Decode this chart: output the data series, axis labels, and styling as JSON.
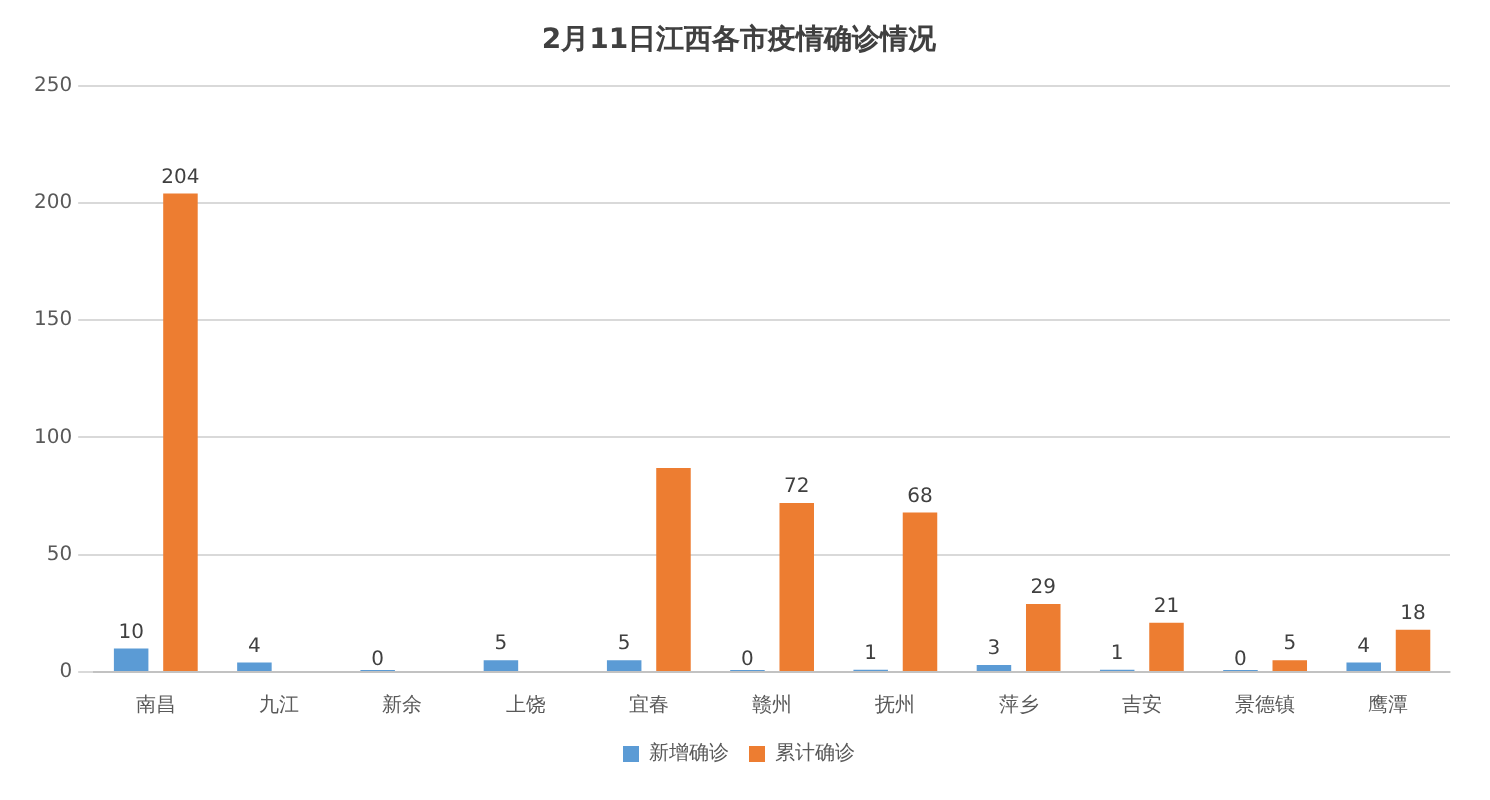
{
  "chart_data": {
    "type": "bar",
    "title": "2月11日江西各市疫情确诊情况",
    "categories": [
      "南昌",
      "九江",
      "新余",
      "上饶",
      "宜春",
      "赣州",
      "抚州",
      "萍乡",
      "吉安",
      "景德镇",
      "鹰潭"
    ],
    "series": [
      {
        "name": "新增确诊",
        "color": "#5b9bd5",
        "values": [
          10,
          4,
          0,
          5,
          5,
          0,
          1,
          3,
          1,
          0,
          4
        ],
        "value_labels": [
          "10",
          "4",
          "0",
          "5",
          "5",
          "0",
          "1",
          "3",
          "1",
          "0",
          "4"
        ]
      },
      {
        "name": "累计确诊",
        "color": "#ed7d31",
        "values": [
          204,
          null,
          null,
          null,
          87,
          72,
          68,
          29,
          21,
          5,
          18
        ],
        "value_labels": [
          "204",
          null,
          null,
          null,
          null,
          "72",
          "68",
          "29",
          "21",
          "5",
          "18"
        ]
      }
    ],
    "ylim": [
      0,
      250
    ],
    "yticks": [
      0,
      50,
      100,
      150,
      200,
      250
    ],
    "grid": "y",
    "legend": "bottom"
  }
}
